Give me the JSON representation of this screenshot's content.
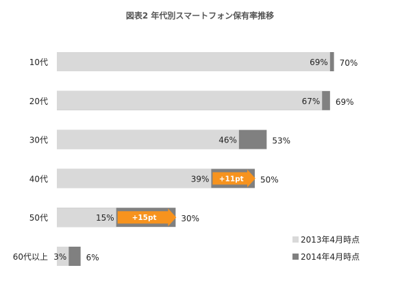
{
  "chart_data": {
    "type": "bar",
    "orientation": "horizontal",
    "stacked_overlay": true,
    "title": "図表2 年代別スマートフォン保有率推移",
    "categories": [
      "10代",
      "20代",
      "30代",
      "40代",
      "50代",
      "60代以上"
    ],
    "series": [
      {
        "name": "2013年4月時点",
        "values": [
          69,
          67,
          46,
          39,
          15,
          3
        ],
        "color": "#d9d9d9"
      },
      {
        "name": "2014年4月時点",
        "values": [
          70,
          69,
          53,
          50,
          30,
          6
        ],
        "color": "#808080"
      }
    ],
    "value_labels_2013": [
      "69%",
      "67%",
      "46%",
      "39%",
      "15%",
      "3%"
    ],
    "value_labels_2014": [
      "70%",
      "69%",
      "53%",
      "50%",
      "30%",
      "6%"
    ],
    "annotations": [
      {
        "category": "40代",
        "text": "+11pt",
        "color": "#f7931e"
      },
      {
        "category": "50代",
        "text": "+15pt",
        "color": "#f7931e"
      }
    ],
    "xlim": [
      0,
      100
    ],
    "grid": false,
    "legend_position": "bottom-right",
    "xlabel": "",
    "ylabel": ""
  }
}
